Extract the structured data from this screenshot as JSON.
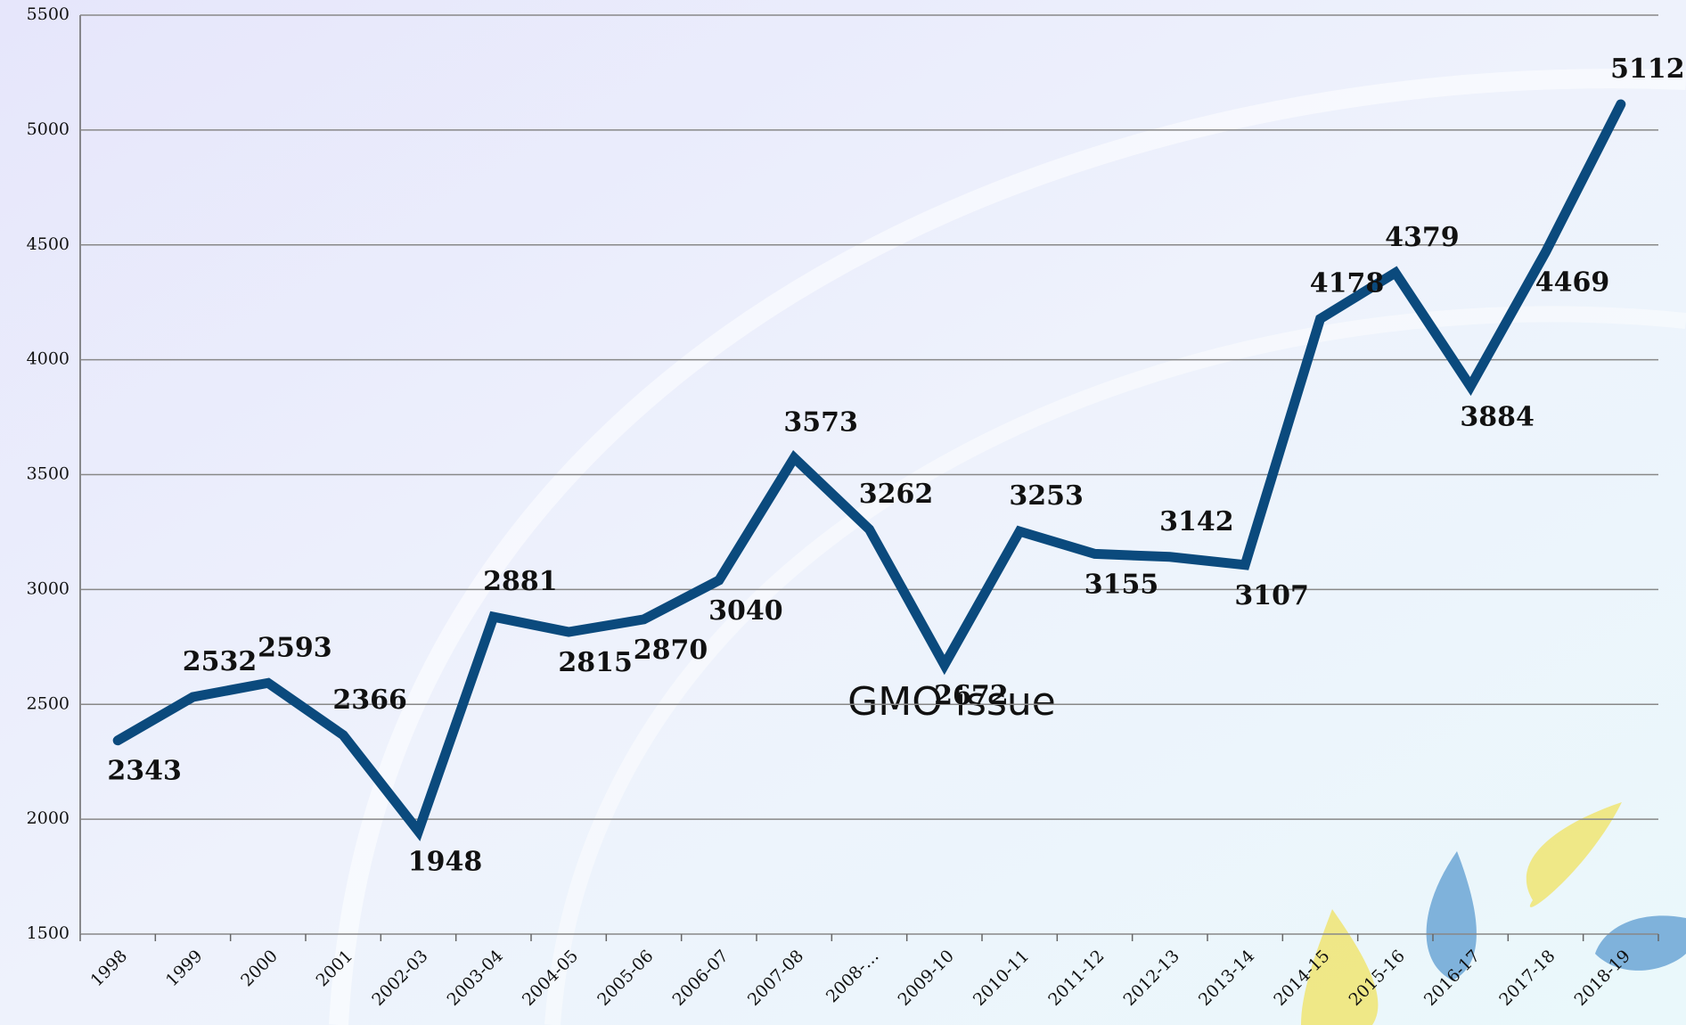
{
  "chart_data": {
    "type": "line",
    "categories": [
      "1998",
      "1999",
      "2000",
      "2001",
      "2002-03",
      "2003-04",
      "2004-05",
      "2005-06",
      "2006-07",
      "2007-08",
      "2008-…",
      "2009-10",
      "2010-11",
      "2011-12",
      "2012-13",
      "2013-14",
      "2014-15",
      "2015-16",
      "2016-17",
      "2017-18",
      "2018-19"
    ],
    "values": [
      2343,
      2532,
      2593,
      2366,
      1948,
      2881,
      2815,
      2870,
      3040,
      3573,
      3262,
      2672,
      3253,
      3155,
      3142,
      3107,
      4178,
      4379,
      3884,
      4469,
      5112
    ],
    "color": "#0b4a7d",
    "ylim": [
      1500,
      5500
    ],
    "yticks": [
      1500,
      2000,
      2500,
      3000,
      3500,
      4000,
      4500,
      5000,
      5500
    ],
    "grid": true,
    "annotation": "GMO  issue"
  }
}
